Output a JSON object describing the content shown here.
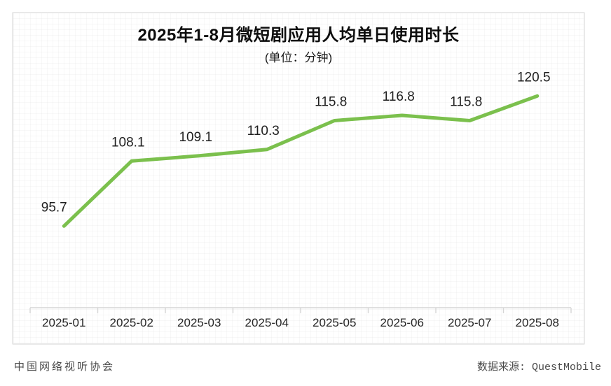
{
  "header": {
    "title": "2025年1-8月微短剧应用人均单日使用时长",
    "subtitle": "(单位：分钟)"
  },
  "footer": {
    "left": "中国网络视听协会",
    "right": "数据来源: QuestMobile"
  },
  "colors": {
    "line": "#7bc04d",
    "axis": "#d6d6d6",
    "data_label": "#1f1f1f",
    "x_label": "#262626",
    "card_border": "#e9e9e9",
    "footer_text": "#4a4a4a"
  },
  "chart_data": {
    "type": "line",
    "title": "2025年1-8月微短剧应用人均单日使用时长",
    "subtitle": "(单位：分钟)",
    "unit": "分钟",
    "categories": [
      "2025-01",
      "2025-02",
      "2025-03",
      "2025-04",
      "2025-05",
      "2025-06",
      "2025-07",
      "2025-08"
    ],
    "values": [
      95.7,
      108.1,
      109.1,
      110.3,
      115.8,
      116.8,
      115.8,
      120.5
    ],
    "xlabel": "",
    "ylabel": "",
    "ylim": [
      88,
      133
    ],
    "grid": false,
    "legend": "none",
    "markers": "none",
    "data_labels": true,
    "line_color": "#7bc04d"
  }
}
